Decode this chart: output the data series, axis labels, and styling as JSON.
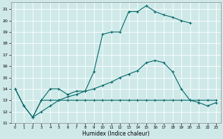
{
  "xlabel": "Humidex (Indice chaleur)",
  "xlim": [
    -0.5,
    23.5
  ],
  "ylim": [
    11,
    21.6
  ],
  "yticks": [
    11,
    12,
    13,
    14,
    15,
    16,
    17,
    18,
    19,
    20,
    21
  ],
  "xticks": [
    0,
    1,
    2,
    3,
    4,
    5,
    6,
    7,
    8,
    9,
    10,
    11,
    12,
    13,
    14,
    15,
    16,
    17,
    18,
    19,
    20,
    21,
    22,
    23
  ],
  "bg_color": "#cfe9e9",
  "grid_color": "#ffffff",
  "line_color": "#006666",
  "line1_x": [
    0,
    1,
    2,
    3,
    4,
    5,
    6,
    7,
    8,
    9,
    10,
    11,
    12,
    13,
    14,
    15,
    16,
    17,
    18,
    19,
    20
  ],
  "line1_y": [
    14.0,
    12.5,
    11.5,
    13.0,
    14.0,
    14.0,
    13.5,
    13.8,
    13.8,
    15.5,
    18.8,
    19.0,
    19.0,
    20.8,
    20.8,
    21.3,
    20.8,
    20.5,
    20.3,
    20.0,
    19.8
  ],
  "line2_x": [
    0,
    1,
    2,
    3,
    4,
    5,
    6,
    7,
    8,
    9,
    10,
    11,
    12,
    13,
    14,
    15,
    16,
    17,
    18,
    19,
    20,
    21,
    22,
    23
  ],
  "line2_y": [
    14.0,
    12.5,
    11.5,
    13.0,
    13.0,
    13.0,
    13.0,
    13.0,
    13.0,
    13.0,
    13.0,
    13.0,
    13.0,
    13.0,
    13.0,
    13.0,
    13.0,
    13.0,
    13.0,
    13.0,
    13.0,
    13.0,
    13.0,
    13.0
  ],
  "line3_x": [
    2,
    3,
    4,
    5,
    6,
    7,
    8,
    9,
    10,
    11,
    12,
    13,
    14,
    15,
    16,
    17,
    18,
    19,
    20,
    21,
    22,
    23
  ],
  "line3_y": [
    11.5,
    12.0,
    12.5,
    13.0,
    13.3,
    13.5,
    13.8,
    14.0,
    14.3,
    14.6,
    15.0,
    15.3,
    15.6,
    16.3,
    16.5,
    16.3,
    15.5,
    14.0,
    13.0,
    12.8,
    12.5,
    12.8
  ]
}
